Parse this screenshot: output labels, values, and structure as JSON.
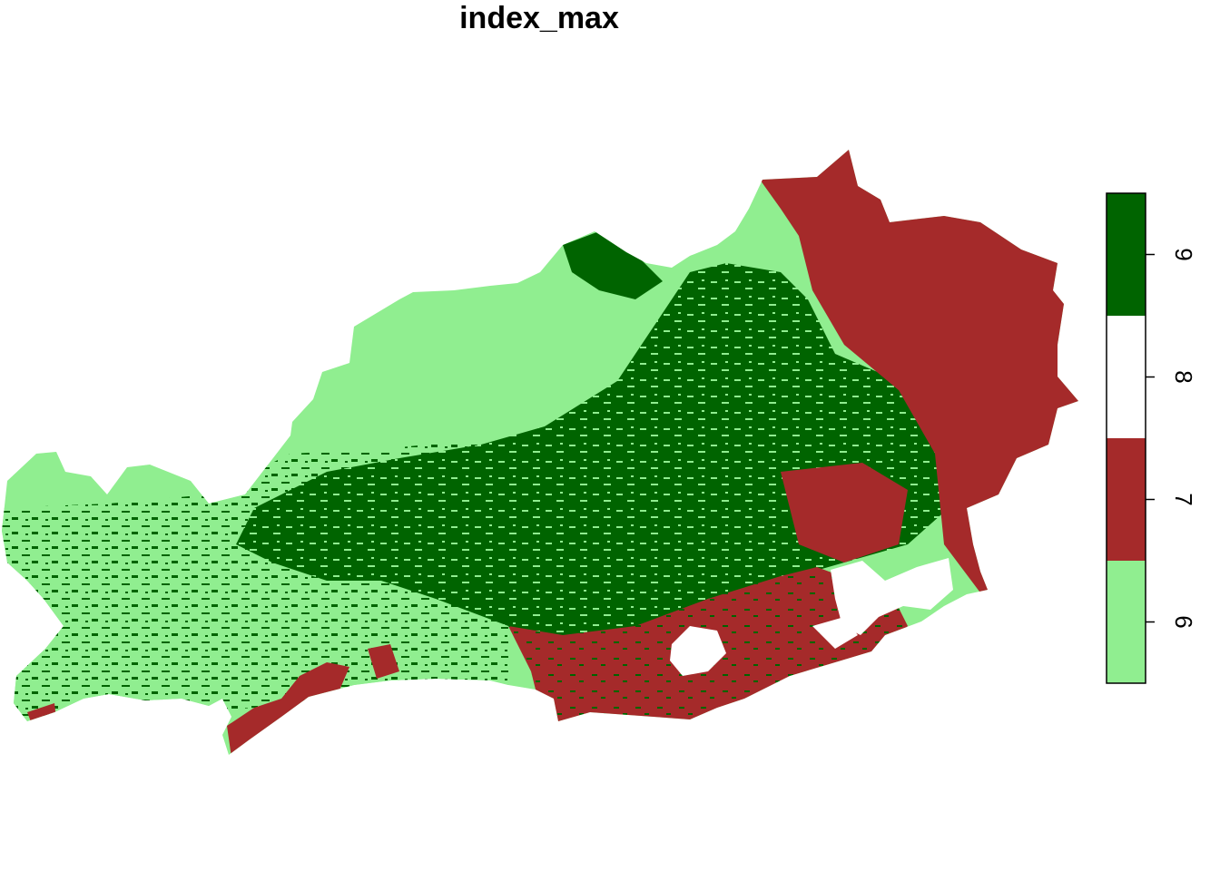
{
  "title": "index_max",
  "map": {
    "layer_name": "index_max",
    "type": "categorical raster",
    "classes": [
      {
        "value": 6,
        "label": "6",
        "color": "#90ee90"
      },
      {
        "value": 7,
        "label": "7",
        "color": "#a52a2a"
      },
      {
        "value": 8,
        "label": "8",
        "color": "#ffffff"
      },
      {
        "value": 9,
        "label": "9",
        "color": "#006400"
      }
    ],
    "legend": {
      "position": "right",
      "range": [
        5.5,
        9.5
      ]
    }
  }
}
